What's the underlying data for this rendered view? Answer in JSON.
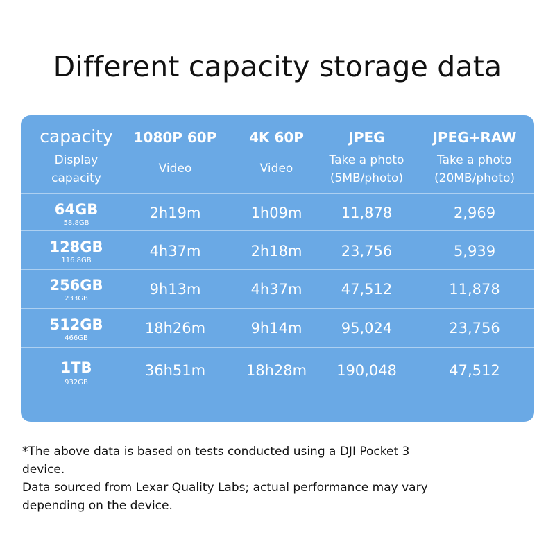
{
  "title": "Different capacity storage data",
  "table": {
    "header": {
      "capacity": "capacity",
      "display_line1": "Display",
      "display_line2": "capacity",
      "col1_title": "1080P 60P",
      "col1_sub": "Video",
      "col2_title": "4K 60P",
      "col2_sub": "Video",
      "col3_title": "JPEG",
      "col3_sub1": "Take a photo",
      "col3_sub2": "(5MB/photo)",
      "col4_title": "JPEG+RAW",
      "col4_sub1": "Take a photo",
      "col4_sub2": "(20MB/photo)"
    },
    "rows": [
      {
        "capacity": "64GB",
        "display": "58.8GB",
        "v1080": "2h19m",
        "v4k": "1h09m",
        "jpeg": "11,878",
        "raw": "2,969"
      },
      {
        "capacity": "128GB",
        "display": "116.8GB",
        "v1080": "4h37m",
        "v4k": "2h18m",
        "jpeg": "23,756",
        "raw": "5,939"
      },
      {
        "capacity": "256GB",
        "display": "233GB",
        "v1080": "9h13m",
        "v4k": "4h37m",
        "jpeg": "47,512",
        "raw": "11,878"
      },
      {
        "capacity": "512GB",
        "display": "466GB",
        "v1080": "18h26m",
        "v4k": "9h14m",
        "jpeg": "95,024",
        "raw": "23,756"
      },
      {
        "capacity": "1TB",
        "display": "932GB",
        "v1080": "36h51m",
        "v4k": "18h28m",
        "jpeg": "190,048",
        "raw": "47,512"
      }
    ]
  },
  "footnote": {
    "line1": "*The above data is based on tests conducted using a DJI Pocket 3 device.",
    "line2": "Data sourced from Lexar Quality Labs; actual performance may vary depending on the device."
  },
  "colors": {
    "table_background": "#6aa9e5",
    "text_on_table": "#ffffff",
    "title_text": "#111111"
  }
}
